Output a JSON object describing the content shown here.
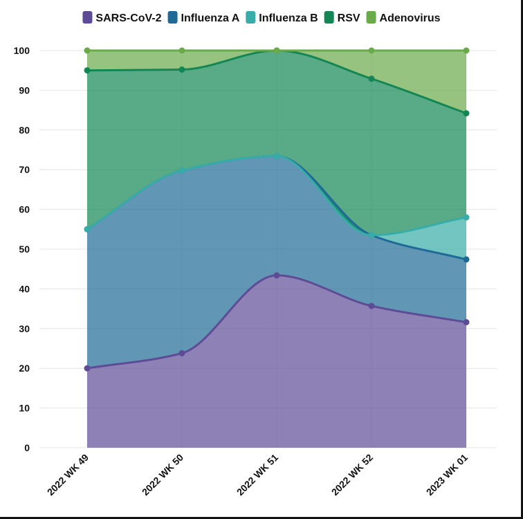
{
  "chart_data": {
    "type": "area",
    "stacked": true,
    "title": "",
    "xlabel": "",
    "ylabel": "",
    "categories": [
      "2022 WK 49",
      "2022 WK 50",
      "2022 WK 51",
      "2022 WK 52",
      "2023 WK 01"
    ],
    "ylim": [
      0,
      100
    ],
    "yticks": [
      0,
      10,
      20,
      30,
      40,
      50,
      60,
      70,
      80,
      90,
      100
    ],
    "grid": true,
    "legend_position": "top",
    "series": [
      {
        "name": "SARS-CoV-2",
        "color": "#5e4b96",
        "values": [
          20.0,
          23.8,
          43.4,
          35.7,
          31.6
        ]
      },
      {
        "name": "Influenza A",
        "color": "#1f6a96",
        "values": [
          35.0,
          46.0,
          30.0,
          17.8,
          15.8
        ]
      },
      {
        "name": "Influenza B",
        "color": "#38aca8",
        "values": [
          0.0,
          0.0,
          0.0,
          0.0,
          10.6
        ]
      },
      {
        "name": "RSV",
        "color": "#138654",
        "values": [
          40.0,
          25.4,
          26.6,
          39.4,
          26.2
        ]
      },
      {
        "name": "Adenovirus",
        "color": "#6aaa4a",
        "values": [
          5.0,
          4.8,
          0.0,
          7.1,
          15.8
        ]
      }
    ]
  }
}
